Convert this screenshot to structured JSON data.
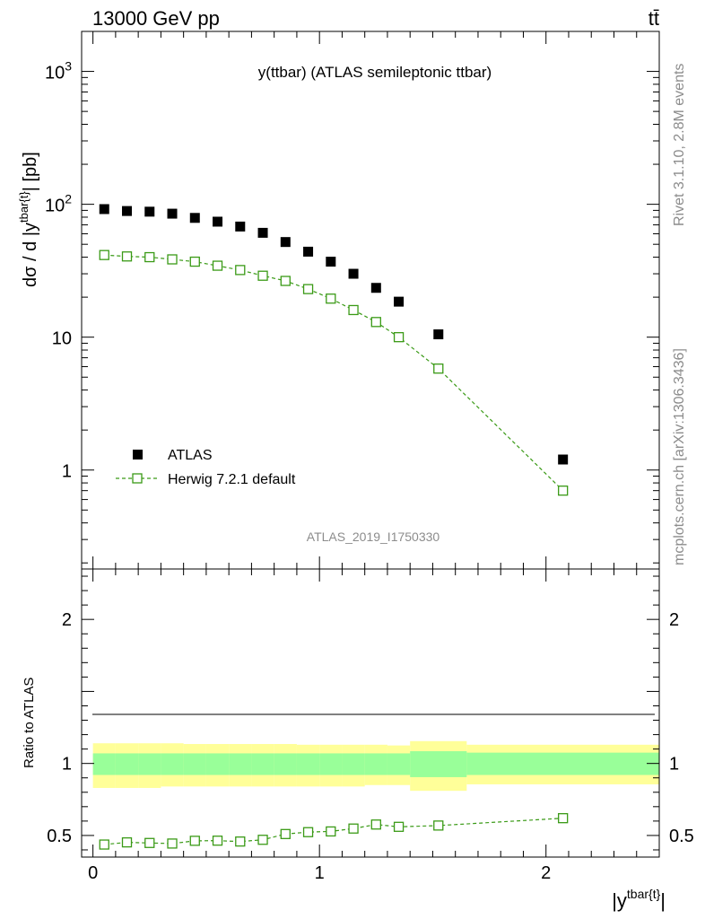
{
  "header": {
    "energy_label": "13000 GeV pp",
    "process_label": "tt̄"
  },
  "side_text": {
    "rivet": "Rivet 3.1.10,  2.8M events",
    "mcplots": "mcplots.cern.ch [arXiv:1306.3436]"
  },
  "colors": {
    "data": "#000000",
    "mc": "#3a9a16",
    "band_outer": "#ffff99",
    "band_inner": "#99ff99"
  },
  "chart_data": [
    {
      "type": "scatter",
      "title": "y(ttbar) (ATLAS semileptonic ttbar)",
      "ylabel": "dσ / d |y^{tbar{t}}| [pb]",
      "xlabel": "|y^{tbar{t}}|",
      "yscale": "log",
      "ylim": [
        0.18,
        2000
      ],
      "xlim": [
        -0.05,
        2.5
      ],
      "yticks": [
        {
          "value": 1,
          "label": "1"
        },
        {
          "value": 10,
          "label": "10"
        },
        {
          "value": 100,
          "label": "10",
          "exp": "2"
        },
        {
          "value": 1000,
          "label": "10",
          "exp": "3"
        }
      ],
      "analysis_id": "ATLAS_2019_I1750330",
      "legend": {
        "position": "bottom-left",
        "entries": [
          "ATLAS",
          "Herwig 7.2.1 default"
        ]
      },
      "series": [
        {
          "name": "ATLAS",
          "marker": "filled-square",
          "x": [
            0.05,
            0.15,
            0.25,
            0.35,
            0.45,
            0.55,
            0.65,
            0.75,
            0.85,
            0.95,
            1.05,
            1.15,
            1.25,
            1.35,
            1.525,
            2.075
          ],
          "values": [
            92,
            89,
            88,
            85,
            79,
            74,
            68,
            61,
            52,
            44,
            37,
            30,
            23.5,
            18.5,
            10.5,
            1.2
          ]
        },
        {
          "name": "Herwig 7.2.1 default",
          "marker": "open-square-dashed",
          "x": [
            0.05,
            0.15,
            0.25,
            0.35,
            0.45,
            0.55,
            0.65,
            0.75,
            0.85,
            0.95,
            1.05,
            1.15,
            1.25,
            1.35,
            1.525,
            2.075
          ],
          "values": [
            41.5,
            40.5,
            40,
            38.5,
            37,
            34.5,
            32,
            29,
            26.5,
            23,
            19.5,
            16,
            13,
            10,
            5.8,
            0.7
          ]
        }
      ]
    },
    {
      "type": "line",
      "ylabel": "Ratio to ATLAS",
      "xlabel": "|y^{tbar{t}}|",
      "ylim": [
        0.35,
        2.35
      ],
      "xlim": [
        -0.05,
        2.5
      ],
      "yticks": [
        {
          "value": 0.5,
          "label": "0.5"
        },
        {
          "value": 1,
          "label": "1"
        },
        {
          "value": 2,
          "label": "2"
        }
      ],
      "xticks": [
        {
          "value": 0,
          "label": "0"
        },
        {
          "value": 1,
          "label": "1"
        },
        {
          "value": 2,
          "label": "2"
        }
      ],
      "bins": [
        0,
        0.1,
        0.2,
        0.3,
        0.4,
        0.5,
        0.6,
        0.7,
        0.8,
        0.9,
        1.0,
        1.1,
        1.2,
        1.3,
        1.4,
        1.65,
        2.5
      ],
      "band_outer": {
        "lo": [
          0.83,
          0.83,
          0.83,
          0.84,
          0.84,
          0.84,
          0.84,
          0.84,
          0.84,
          0.84,
          0.84,
          0.84,
          0.85,
          0.85,
          0.81,
          0.855
        ],
        "hi": [
          1.14,
          1.14,
          1.14,
          1.14,
          1.135,
          1.135,
          1.135,
          1.135,
          1.135,
          1.13,
          1.13,
          1.13,
          1.13,
          1.125,
          1.155,
          1.13
        ]
      },
      "band_inner": {
        "lo": [
          0.92,
          0.92,
          0.92,
          0.92,
          0.92,
          0.92,
          0.92,
          0.92,
          0.92,
          0.92,
          0.92,
          0.92,
          0.92,
          0.92,
          0.905,
          0.92
        ],
        "hi": [
          1.07,
          1.07,
          1.07,
          1.07,
          1.07,
          1.07,
          1.07,
          1.07,
          1.07,
          1.07,
          1.07,
          1.07,
          1.07,
          1.07,
          1.085,
          1.075
        ]
      },
      "series": [
        {
          "name": "Herwig 7.2.1 default",
          "x": [
            0.05,
            0.15,
            0.25,
            0.35,
            0.45,
            0.55,
            0.65,
            0.75,
            0.85,
            0.95,
            1.05,
            1.15,
            1.25,
            1.35,
            1.525,
            2.075
          ],
          "values": [
            0.437,
            0.452,
            0.448,
            0.444,
            0.463,
            0.464,
            0.458,
            0.47,
            0.51,
            0.523,
            0.528,
            0.548,
            0.576,
            0.56,
            0.569,
            0.62
          ]
        }
      ]
    }
  ]
}
